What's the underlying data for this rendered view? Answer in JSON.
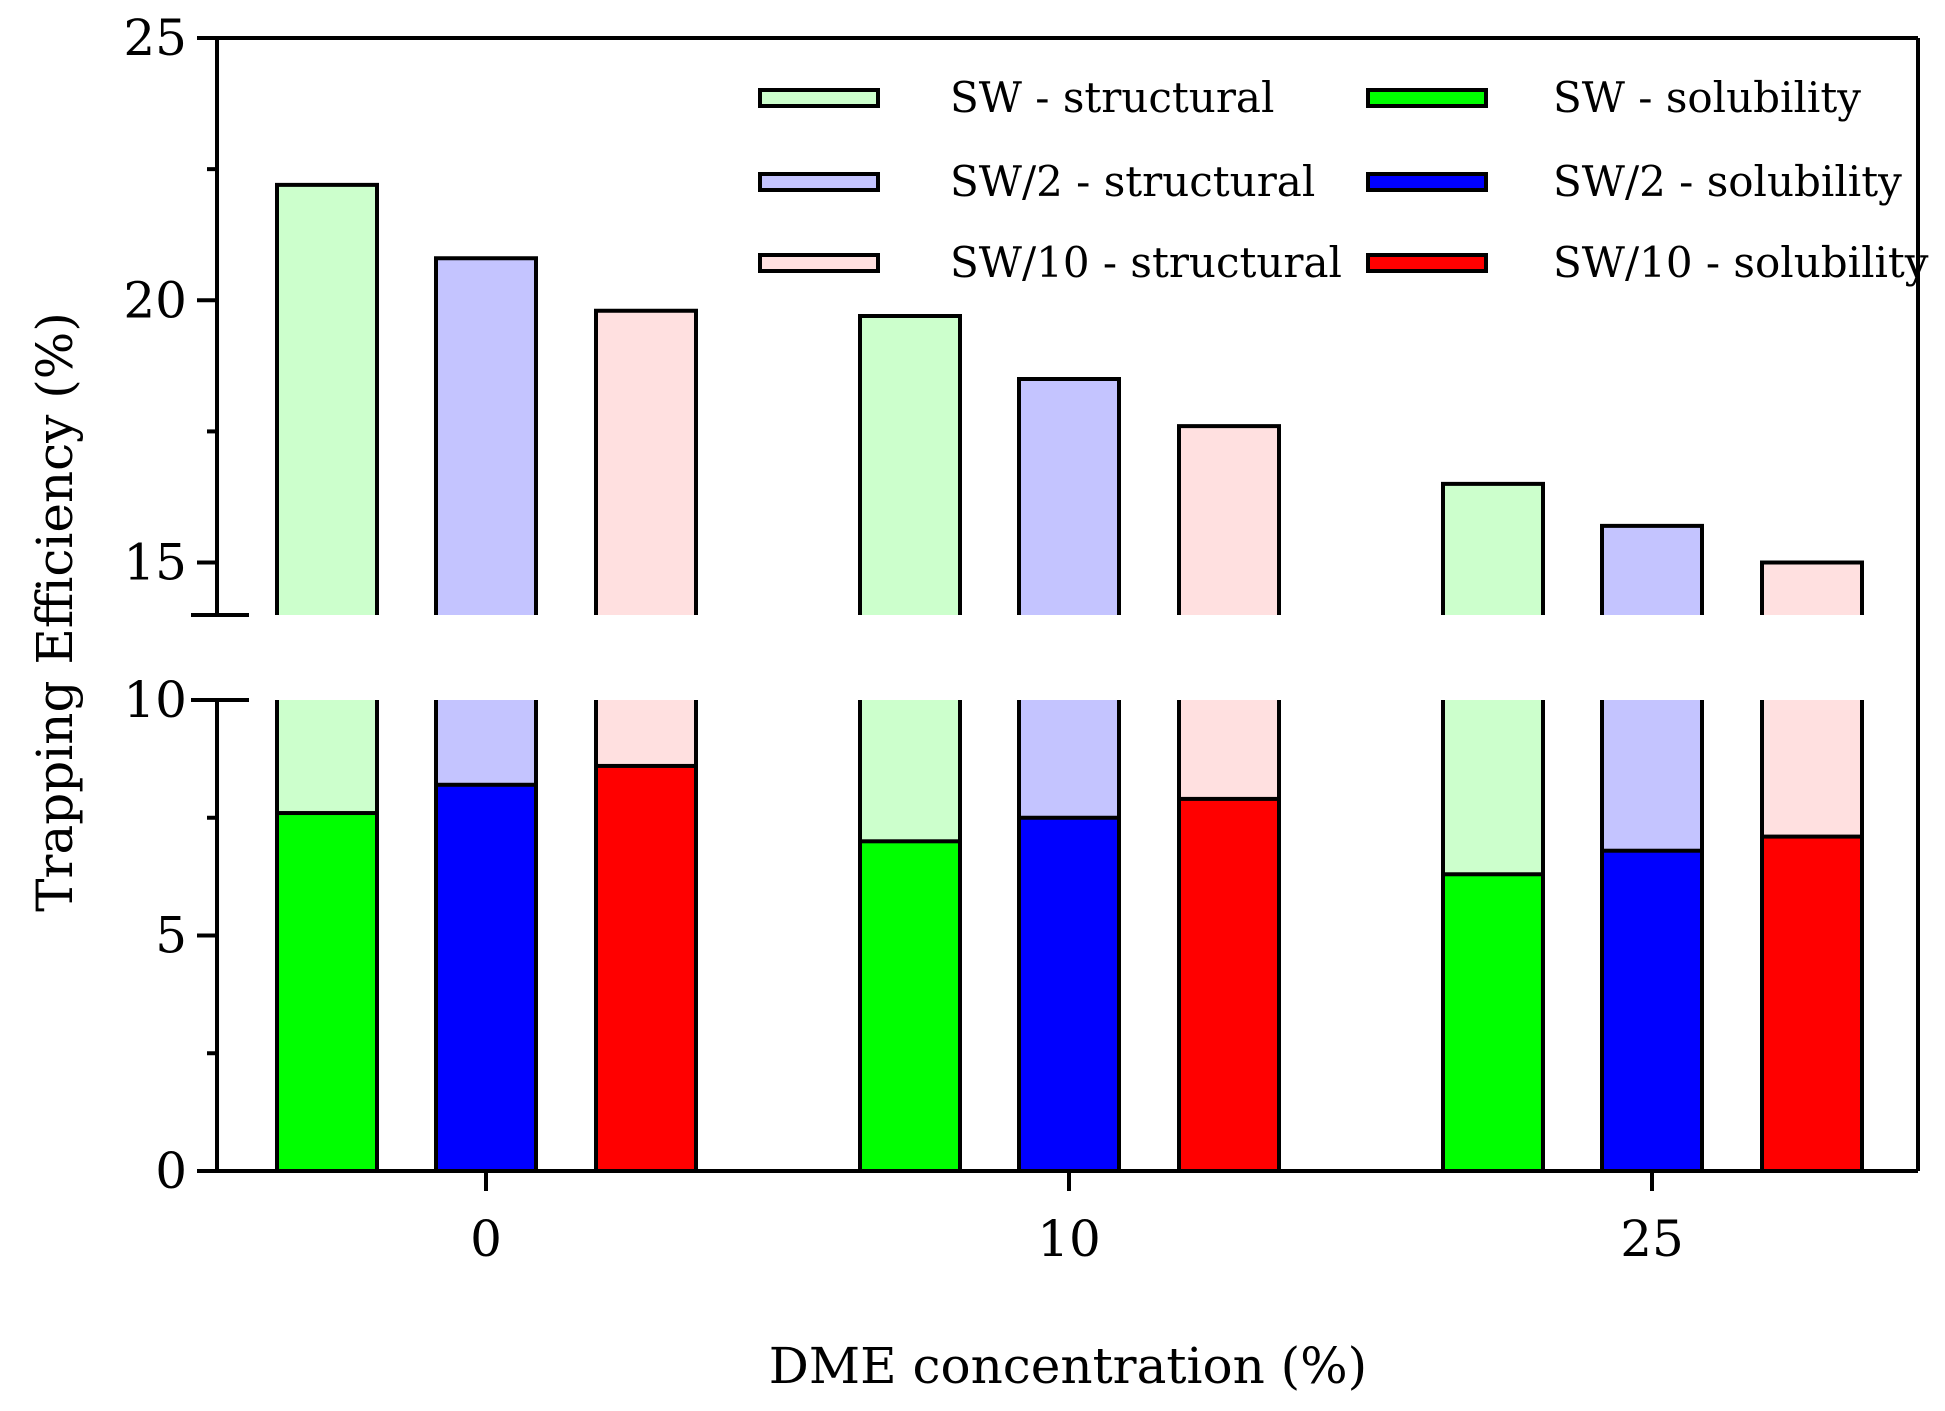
{
  "chart_data": {
    "type": "bar",
    "subtype": "stacked-grouped-broken-axis",
    "title": "",
    "xlabel": "DME concentration (%)",
    "ylabel": "Trapping Efficiency (%)",
    "categories": [
      "0",
      "10",
      "25"
    ],
    "y_ticks_lower": [
      "0",
      "5",
      "10"
    ],
    "y_ticks_upper": [
      "15",
      "20",
      "25"
    ],
    "ylim": [
      0,
      25
    ],
    "axis_break": [
      10,
      14
    ],
    "grid": false,
    "legend_position": "top-right",
    "groups": [
      {
        "name": "SW",
        "solubility": {
          "label": "SW - solubility",
          "color": "#00ff00",
          "values": [
            7.6,
            7.0,
            6.3
          ]
        },
        "structural": {
          "label": "SW - structural",
          "color": "#ccffcc",
          "totals": [
            22.2,
            19.7,
            16.5
          ]
        }
      },
      {
        "name": "SW/2",
        "solubility": {
          "label": "SW/2 - solubility",
          "color": "#0000ff",
          "values": [
            8.2,
            7.5,
            6.8
          ]
        },
        "structural": {
          "label": "SW/2 - structural",
          "color": "#c4c4ff",
          "totals": [
            20.8,
            18.5,
            15.7
          ]
        }
      },
      {
        "name": "SW/10",
        "solubility": {
          "label": "SW/10 - solubility",
          "color": "#ff0000",
          "values": [
            8.6,
            7.9,
            7.1
          ]
        },
        "structural": {
          "label": "SW/10 - structural",
          "color": "#ffe0e0",
          "totals": [
            19.8,
            17.6,
            15.0
          ]
        }
      }
    ]
  }
}
